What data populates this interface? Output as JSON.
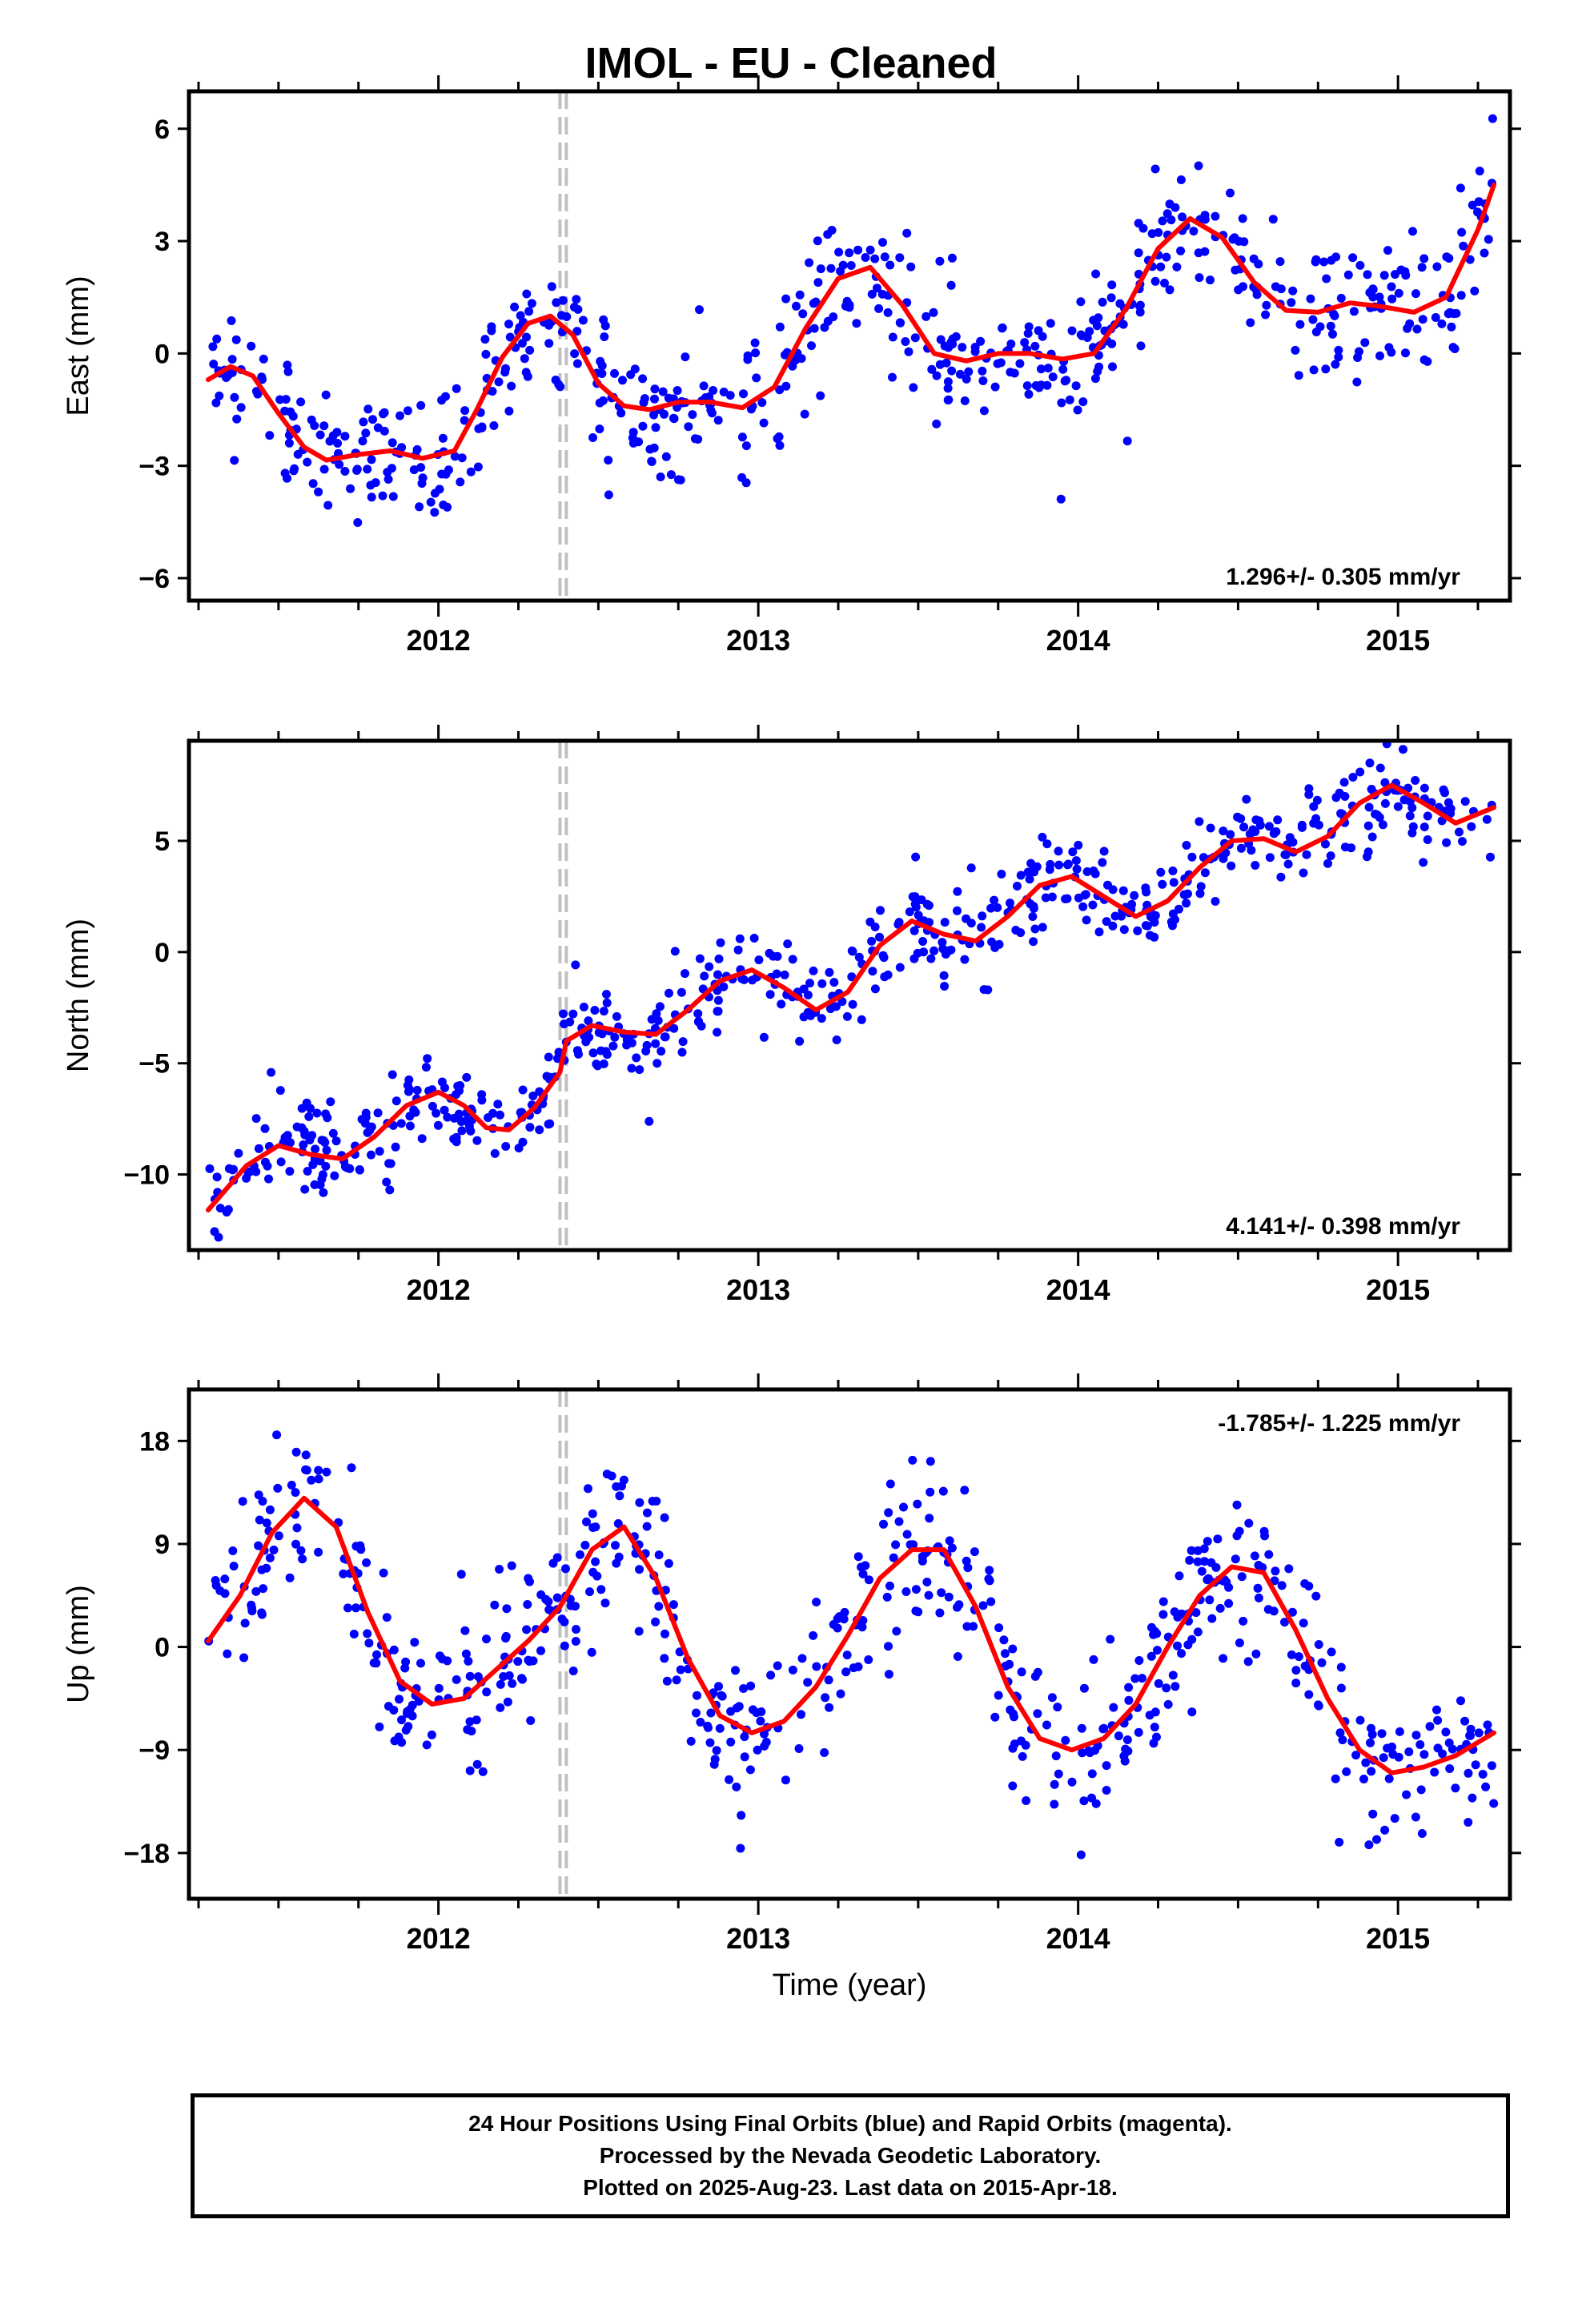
{
  "title": "IMOL  - EU - Cleaned",
  "footer": {
    "line1": "24 Hour Positions Using Final Orbits (blue) and Rapid Orbits (magenta).",
    "line2": "Processed by the Nevada Geodetic Laboratory.",
    "line3": "Plotted on 2025-Aug-23. Last data on 2015-Apr-18."
  },
  "colors": {
    "points": "#0000ff",
    "model": "#ff0000",
    "step_lines": "#c0c0c0",
    "frame": "#000000"
  },
  "chart_data": [
    {
      "type": "scatter",
      "ylabel": "East (mm)",
      "xlabel": "",
      "rate_label": "1.296+/- 0.305 mm/yr",
      "rate_position": "bottom-right",
      "xlim": [
        2011.22,
        2015.35
      ],
      "ylim": [
        -6.6,
        7.0
      ],
      "yticks": [
        -6,
        -3,
        0,
        3,
        6
      ],
      "yticklabels": [
        "−6",
        "−3",
        "0",
        "3",
        "6"
      ],
      "xticks": [
        2012,
        2013,
        2014,
        2015
      ],
      "xticklabels": [
        "2012",
        "2013",
        "2014",
        "2015"
      ],
      "step_lines": [
        2012.38,
        2012.4
      ],
      "data_start": 2011.28,
      "data_end": 2015.3,
      "model": {
        "x": [
          2011.28,
          2011.35,
          2011.42,
          2011.5,
          2011.58,
          2011.65,
          2011.75,
          2011.85,
          2011.95,
          2012.05,
          2012.12,
          2012.2,
          2012.28,
          2012.35,
          2012.42,
          2012.5,
          2012.58,
          2012.66,
          2012.75,
          2012.85,
          2012.95,
          2013.05,
          2013.15,
          2013.25,
          2013.35,
          2013.45,
          2013.55,
          2013.65,
          2013.75,
          2013.85,
          2013.95,
          2014.05,
          2014.15,
          2014.25,
          2014.35,
          2014.45,
          2014.55,
          2014.65,
          2014.75,
          2014.85,
          2014.95,
          2015.05,
          2015.15,
          2015.25,
          2015.3
        ],
        "y": [
          -0.7,
          -0.35,
          -0.6,
          -1.6,
          -2.5,
          -2.85,
          -2.7,
          -2.6,
          -2.8,
          -2.6,
          -1.5,
          -0.1,
          0.8,
          1.0,
          0.5,
          -0.8,
          -1.4,
          -1.5,
          -1.3,
          -1.3,
          -1.45,
          -0.9,
          0.7,
          2.0,
          2.3,
          1.3,
          0.0,
          -0.2,
          0.0,
          0.0,
          -0.15,
          0.0,
          1.2,
          2.8,
          3.6,
          3.1,
          1.9,
          1.15,
          1.1,
          1.35,
          1.25,
          1.1,
          1.5,
          3.3,
          4.5
        ]
      }
    },
    {
      "type": "scatter",
      "ylabel": "North (mm)",
      "xlabel": "",
      "rate_label": "4.141+/- 0.398 mm/yr",
      "rate_position": "bottom-right",
      "xlim": [
        2011.22,
        2015.35
      ],
      "ylim": [
        -13.4,
        9.5
      ],
      "yticks": [
        -10,
        -5,
        0,
        5
      ],
      "yticklabels": [
        "−10",
        "−5",
        "0",
        "5"
      ],
      "xticks": [
        2012,
        2013,
        2014,
        2015
      ],
      "xticklabels": [
        "2012",
        "2013",
        "2014",
        "2015"
      ],
      "step_lines": [
        2012.38,
        2012.4
      ],
      "data_start": 2011.28,
      "data_end": 2015.3,
      "model": {
        "x": [
          2011.28,
          2011.4,
          2011.5,
          2011.6,
          2011.7,
          2011.8,
          2011.9,
          2012.0,
          2012.08,
          2012.15,
          2012.22,
          2012.3,
          2012.38,
          2012.4,
          2012.48,
          2012.58,
          2012.68,
          2012.78,
          2012.88,
          2012.98,
          2013.08,
          2013.18,
          2013.28,
          2013.38,
          2013.48,
          2013.58,
          2013.68,
          2013.78,
          2013.88,
          2013.98,
          2014.08,
          2014.18,
          2014.28,
          2014.38,
          2014.48,
          2014.58,
          2014.68,
          2014.78,
          2014.88,
          2014.98,
          2015.08,
          2015.18,
          2015.3
        ],
        "y": [
          -11.6,
          -9.6,
          -8.7,
          -9.1,
          -9.3,
          -8.3,
          -6.9,
          -6.3,
          -6.9,
          -7.9,
          -8.0,
          -7.0,
          -5.4,
          -4.0,
          -3.3,
          -3.6,
          -3.7,
          -2.6,
          -1.3,
          -0.8,
          -1.6,
          -2.6,
          -1.8,
          0.3,
          1.4,
          0.8,
          0.5,
          1.6,
          3.0,
          3.4,
          2.5,
          1.6,
          2.3,
          3.8,
          5.0,
          5.1,
          4.5,
          5.2,
          6.7,
          7.5,
          6.7,
          5.8,
          6.5
        ]
      }
    },
    {
      "type": "scatter",
      "ylabel": "Up (mm)",
      "xlabel": "Time (year)",
      "rate_label": "-1.785+/- 1.225 mm/yr",
      "rate_position": "top-right",
      "xlim": [
        2011.22,
        2015.35
      ],
      "ylim": [
        -22,
        22.5
      ],
      "yticks": [
        -18,
        -9,
        0,
        9,
        18
      ],
      "yticklabels": [
        "−18",
        "−9",
        "0",
        "9",
        "18"
      ],
      "xticks": [
        2012,
        2013,
        2014,
        2015
      ],
      "xticklabels": [
        "2012",
        "2013",
        "2014",
        "2015"
      ],
      "step_lines": [
        2012.38,
        2012.4
      ],
      "data_start": 2011.28,
      "data_end": 2015.3,
      "model": {
        "x": [
          2011.28,
          2011.38,
          2011.48,
          2011.58,
          2011.68,
          2011.78,
          2011.88,
          2011.98,
          2012.08,
          2012.18,
          2012.28,
          2012.38,
          2012.48,
          2012.58,
          2012.68,
          2012.78,
          2012.88,
          2012.98,
          2013.08,
          2013.18,
          2013.28,
          2013.38,
          2013.48,
          2013.58,
          2013.68,
          2013.78,
          2013.88,
          2013.98,
          2014.08,
          2014.18,
          2014.28,
          2014.38,
          2014.48,
          2014.58,
          2014.68,
          2014.78,
          2014.88,
          2014.98,
          2015.08,
          2015.18,
          2015.3
        ],
        "y": [
          0.5,
          4.5,
          10.0,
          13.0,
          10.5,
          3.0,
          -3.0,
          -5.0,
          -4.5,
          -2.0,
          0.5,
          3.5,
          8.5,
          10.5,
          6.0,
          -1.0,
          -6.0,
          -7.5,
          -6.5,
          -3.5,
          1.0,
          6.0,
          8.5,
          8.5,
          3.5,
          -3.5,
          -8.0,
          -9.0,
          -8.0,
          -5.0,
          0.0,
          4.5,
          7.0,
          6.5,
          1.5,
          -4.5,
          -9.0,
          -11.0,
          -10.5,
          -9.5,
          -7.5
        ]
      }
    }
  ]
}
